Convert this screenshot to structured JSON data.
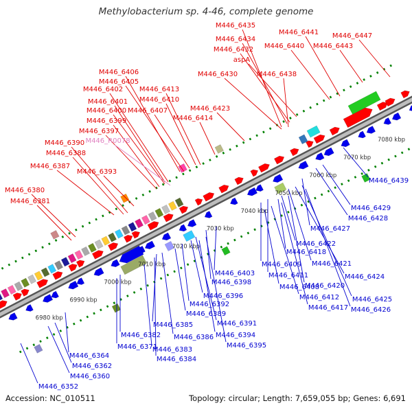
{
  "title": "Methylobacterium sp. 4-46, complete genome",
  "footer": {
    "accession": "Accession: NC_010511",
    "topology": "Topology: circular; Length: 7,659,055 bp; Genes: 6,691"
  },
  "colors": {
    "forward_label": "#e00000",
    "reverse_label": "#0000d0",
    "rna_label": "#e080c0",
    "backbone": "#808080",
    "forward_gene": "#ff0000",
    "reverse_gene": "#0000ee",
    "track_dots": "#008000",
    "scale_text": "#333333"
  },
  "scale_labels": [
    "6980 kbp",
    "6990 kbp",
    "7000 kbp",
    "7010 kbp",
    "7020 kbp",
    "7030 kbp",
    "7040 kbp",
    "7050 kbp",
    "7060 kbp",
    "7070 kbp",
    "7080 kbp"
  ],
  "forward_labels": [
    {
      "text": "M446_6435"
    },
    {
      "text": "M446_6434"
    },
    {
      "text": "M446_6432"
    },
    {
      "text": "aspA"
    },
    {
      "text": "M446_6441"
    },
    {
      "text": "M446_6440"
    },
    {
      "text": "M446_6447"
    },
    {
      "text": "M446_6443"
    },
    {
      "text": "M446_6438"
    },
    {
      "text": "M446_6430"
    },
    {
      "text": "M446_6406"
    },
    {
      "text": "M446_6405"
    },
    {
      "text": "M446_6402"
    },
    {
      "text": "M446_6413"
    },
    {
      "text": "M446_6401"
    },
    {
      "text": "M446_6410"
    },
    {
      "text": "M446_6400"
    },
    {
      "text": "M446_6407"
    },
    {
      "text": "M446_6423"
    },
    {
      "text": "M446_6399"
    },
    {
      "text": "M446_6414"
    },
    {
      "text": "M446_6397"
    },
    {
      "text": "M446_R0078"
    },
    {
      "text": "M446_6390"
    },
    {
      "text": "M446_6388"
    },
    {
      "text": "M446_6387"
    },
    {
      "text": "M446_6393"
    },
    {
      "text": "M446_6380"
    },
    {
      "text": "M446_6381"
    }
  ],
  "reverse_labels": [
    {
      "text": "M446_6439"
    },
    {
      "text": "M446_6429"
    },
    {
      "text": "M446_6428"
    },
    {
      "text": "M446_6427"
    },
    {
      "text": "M446_6422"
    },
    {
      "text": "M446_6418"
    },
    {
      "text": "M446_6421"
    },
    {
      "text": "M446_6409"
    },
    {
      "text": "M446_6411"
    },
    {
      "text": "M446_6424"
    },
    {
      "text": "M446_6403"
    },
    {
      "text": "M446_6398"
    },
    {
      "text": "M446_6408"
    },
    {
      "text": "M446_6420"
    },
    {
      "text": "M446_6412"
    },
    {
      "text": "M446_6425"
    },
    {
      "text": "M446_6396"
    },
    {
      "text": "M446_6417"
    },
    {
      "text": "M446_6426"
    },
    {
      "text": "M446_6392"
    },
    {
      "text": "M446_6389"
    },
    {
      "text": "M446_6385"
    },
    {
      "text": "M446_6391"
    },
    {
      "text": "M446_6386"
    },
    {
      "text": "M446_6394"
    },
    {
      "text": "M446_6382"
    },
    {
      "text": "M446_6395"
    },
    {
      "text": "M446_6371"
    },
    {
      "text": "M446_6383"
    },
    {
      "text": "M446_6364"
    },
    {
      "text": "M446_6384"
    },
    {
      "text": "M446_6362"
    },
    {
      "text": "M446_6360"
    },
    {
      "text": "M446_6352"
    }
  ]
}
